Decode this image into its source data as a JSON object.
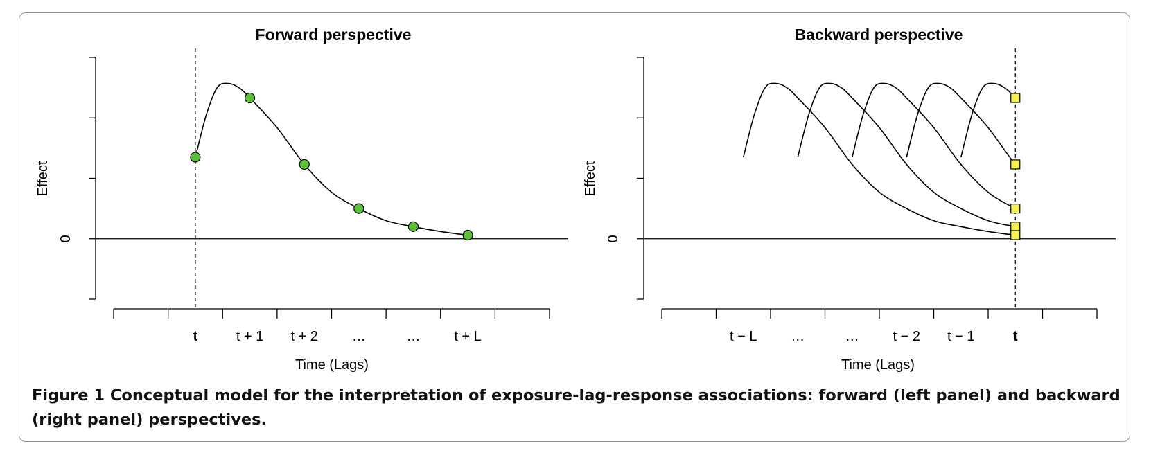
{
  "caption": {
    "label": "Figure 1",
    "text": "Conceptual model for the interpretation of exposure-lag-response associations: forward (left panel) and backward (right panel) perspectives."
  },
  "chart_data": [
    {
      "type": "line",
      "title": "Forward perspective",
      "xlabel": "Time (Lags)",
      "ylabel": "Effect",
      "y_tick_labels": [
        "0"
      ],
      "x_tick_labels": [
        "t",
        "t + 1",
        "t + 2",
        "…",
        "…",
        "t + L"
      ],
      "x_tick_bold": [
        true,
        false,
        false,
        false,
        false,
        false
      ],
      "xlim": [
        -1.5,
        6.5
      ],
      "ylim": [
        -1,
        3
      ],
      "reference_x": 0,
      "series": [
        {
          "curve": {
            "x": [
              0,
              0.2,
              0.4,
              0.6,
              0.8,
              1,
              1.5,
              2,
              2.5,
              3,
              3.5,
              4,
              4.5,
              5
            ],
            "y": [
              1.35,
              2.05,
              2.5,
              2.57,
              2.5,
              2.33,
              1.84,
              1.23,
              0.77,
              0.5,
              0.3,
              0.2,
              0.12,
              0.06
            ]
          },
          "points": {
            "x": [
              0,
              1,
              2,
              3,
              4,
              5
            ],
            "y": [
              1.35,
              2.33,
              1.23,
              0.5,
              0.2,
              0.06
            ],
            "marker": "circle",
            "color": "#5bbf3a"
          }
        }
      ]
    },
    {
      "type": "line",
      "title": "Backward perspective",
      "xlabel": "Time (Lags)",
      "ylabel": "Effect",
      "y_tick_labels": [
        "0"
      ],
      "x_tick_labels": [
        "t − L",
        "…",
        "…",
        "t − 2",
        "t − 1",
        "t"
      ],
      "x_tick_bold": [
        false,
        false,
        false,
        false,
        false,
        true
      ],
      "xlim": [
        -6.5,
        1.5
      ],
      "ylim": [
        -1,
        3
      ],
      "reference_x": 0,
      "series": [
        {
          "curve_start": -5,
          "curve_shape": "same as forward curve"
        },
        {
          "curve_start": -4,
          "curve_shape": "same as forward curve"
        },
        {
          "curve_start": -3,
          "curve_shape": "same as forward curve"
        },
        {
          "curve_start": -2,
          "curve_shape": "same as forward curve"
        },
        {
          "curve_start": -1,
          "curve_shape": "same as forward curve"
        }
      ],
      "points": {
        "x": [
          0,
          0,
          0,
          0,
          0
        ],
        "y": [
          2.33,
          1.23,
          0.5,
          0.2,
          0.06
        ],
        "marker": "square",
        "color": "#f6f155"
      }
    }
  ]
}
